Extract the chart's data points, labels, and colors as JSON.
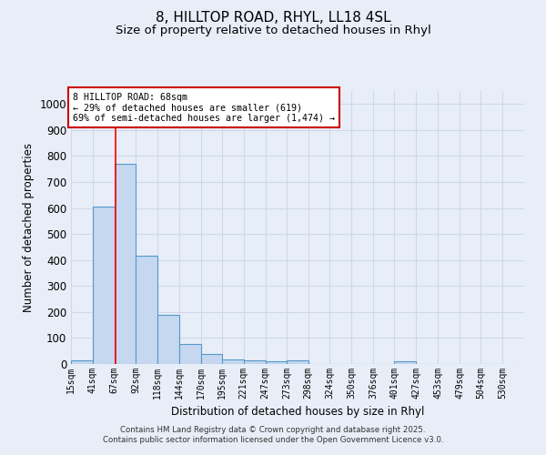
{
  "title1": "8, HILLTOP ROAD, RHYL, LL18 4SL",
  "title2": "Size of property relative to detached houses in Rhyl",
  "xlabel": "Distribution of detached houses by size in Rhyl",
  "ylabel": "Number of detached properties",
  "bar_edges": [
    15,
    41,
    67,
    92,
    118,
    144,
    170,
    195,
    221,
    247,
    273,
    298,
    324,
    350,
    376,
    401,
    427,
    453,
    479,
    504,
    530
  ],
  "bar_heights": [
    15,
    605,
    770,
    415,
    190,
    78,
    40,
    18,
    13,
    11,
    13,
    0,
    0,
    0,
    0,
    12,
    0,
    0,
    0,
    0
  ],
  "bar_color": "#c5d8f0",
  "bar_edge_color": "#5599cc",
  "red_line_x": 68,
  "ylim": [
    0,
    1050
  ],
  "yticks": [
    0,
    100,
    200,
    300,
    400,
    500,
    600,
    700,
    800,
    900,
    1000
  ],
  "annotation_text": "8 HILLTOP ROAD: 68sqm\n← 29% of detached houses are smaller (619)\n69% of semi-detached houses are larger (1,474) →",
  "annotation_box_color": "#ffffff",
  "annotation_border_color": "#cc0000",
  "footer_text": "Contains HM Land Registry data © Crown copyright and database right 2025.\nContains public sector information licensed under the Open Government Licence v3.0.",
  "background_color": "#e8eef8",
  "grid_color": "#d0d8e8",
  "title_fontsize": 11,
  "subtitle_fontsize": 9.5,
  "tick_label_fontsize": 7,
  "ylabel_fontsize": 8.5,
  "xlabel_fontsize": 8.5,
  "footer_fontsize": 6.2
}
